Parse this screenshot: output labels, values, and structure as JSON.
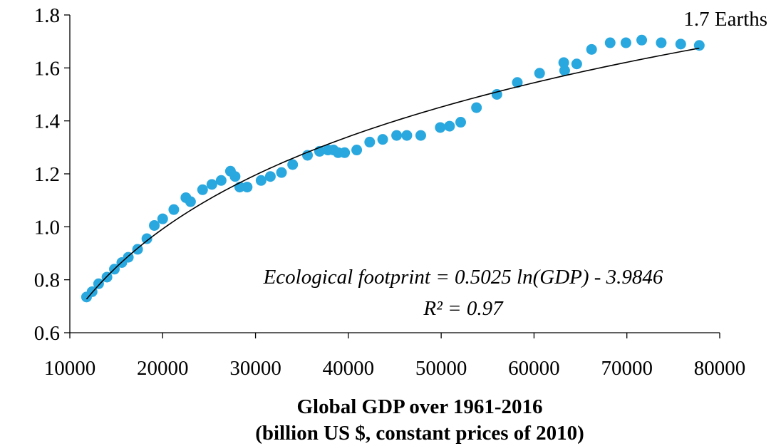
{
  "chart_data": {
    "type": "scatter",
    "title": "",
    "xlabel_line1": "Global GDP over 1961-2016",
    "xlabel_line2": "(billion US $, constant prices of 2010)",
    "ylabel": "",
    "xlim": [
      10000,
      80000
    ],
    "ylim": [
      0.6,
      1.8
    ],
    "x_ticks": [
      "10000",
      "20000",
      "30000",
      "40000",
      "50000",
      "60000",
      "70000",
      "80000"
    ],
    "y_ticks": [
      "0.6",
      "0.8",
      "1.0",
      "1.2",
      "1.4",
      "1.6",
      "1.8"
    ],
    "grid": false,
    "legend": "none",
    "point_color": "#29a8df",
    "trendline": {
      "type": "logarithmic",
      "a": 0.5025,
      "b": -3.9846,
      "x_range": [
        11800,
        77800
      ],
      "color": "#000000"
    },
    "annotations": {
      "equation": "Ecological footprint = 0.5025 ln(GDP) - 3.9846",
      "r_squared": "R² = 0.97",
      "callout": "1.7 Earths"
    },
    "series": [
      {
        "x": [
          11800,
          12400,
          13100,
          14000,
          14800,
          15600,
          16300,
          17300,
          18300,
          19100,
          20000,
          21200,
          22500,
          23000,
          24300,
          25300,
          26300,
          27300,
          27800,
          28300,
          29100,
          30600,
          31600,
          32800,
          34000,
          35600,
          36900,
          37800,
          38400,
          38900,
          39600,
          40900,
          42300,
          43700,
          45200,
          46300,
          47800,
          49900,
          50900,
          52100,
          53800,
          56000,
          58200,
          60600,
          63200,
          63300,
          64600,
          66200,
          68200,
          69900,
          71600,
          73700,
          75800,
          77800
        ],
        "y": [
          0.735,
          0.755,
          0.785,
          0.81,
          0.84,
          0.865,
          0.885,
          0.915,
          0.955,
          1.005,
          1.03,
          1.065,
          1.11,
          1.095,
          1.14,
          1.16,
          1.175,
          1.21,
          1.19,
          1.15,
          1.15,
          1.175,
          1.19,
          1.205,
          1.235,
          1.27,
          1.285,
          1.29,
          1.29,
          1.28,
          1.28,
          1.29,
          1.32,
          1.33,
          1.345,
          1.345,
          1.345,
          1.375,
          1.38,
          1.395,
          1.45,
          1.5,
          1.545,
          1.58,
          1.62,
          1.59,
          1.615,
          1.67,
          1.695,
          1.695,
          1.705,
          1.695,
          1.69,
          1.685
        ]
      }
    ]
  }
}
